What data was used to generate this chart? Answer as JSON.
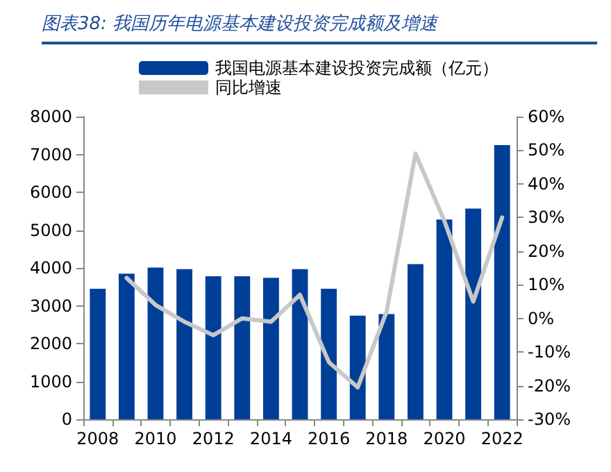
{
  "chart_data": {
    "type": "bar",
    "title": "图表38: 我国历年电源基本建设投资完成额及增速",
    "categories": [
      "2008",
      null,
      "2010",
      null,
      "2012",
      null,
      "2014",
      null,
      "2016",
      null,
      "2018",
      null,
      "2020",
      null,
      "2022"
    ],
    "series": [
      {
        "name": "我国电源基本建设投资完成额（亿元）",
        "color": "#003f98",
        "values": [
          3450,
          3850,
          4010,
          3970,
          3780,
          3780,
          3740,
          3970,
          3450,
          2740,
          2780,
          4100,
          5280,
          5570,
          7250
        ]
      },
      {
        "name": "同比增速",
        "type": "line",
        "axis": "y2",
        "color": "#c8c8c8",
        "values": [
          null,
          12,
          4,
          -1,
          -5,
          0,
          -1,
          7,
          -13,
          -20.5,
          2,
          49,
          29,
          5,
          30
        ]
      }
    ],
    "ylim": [
      0,
      8000
    ],
    "yticks": [
      0,
      1000,
      2000,
      3000,
      4000,
      5000,
      6000,
      7000,
      8000
    ],
    "y2lim": [
      -30,
      60
    ],
    "y2ticks": [
      {
        "value": -30,
        "label": "-30%"
      },
      {
        "value": -20,
        "label": "-20%"
      },
      {
        "value": -10,
        "label": "-10%"
      },
      {
        "value": 0,
        "label": "0%"
      },
      {
        "value": 10,
        "label": "10%"
      },
      {
        "value": 20,
        "label": "20%"
      },
      {
        "value": 30,
        "label": "30%"
      },
      {
        "value": 40,
        "label": "40%"
      },
      {
        "value": 50,
        "label": "50%"
      },
      {
        "value": 60,
        "label": "60%"
      }
    ],
    "grid": false,
    "legend": "top",
    "marker": "none",
    "line_style": "solid"
  }
}
